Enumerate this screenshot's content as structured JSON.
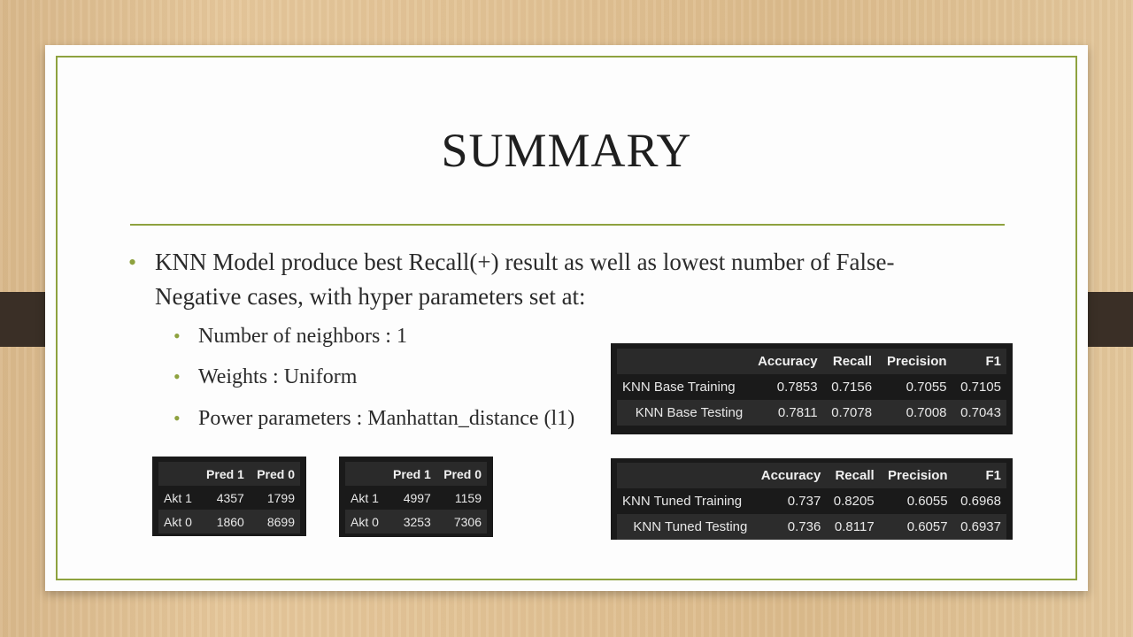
{
  "title": "SUMMARY",
  "main_bullet": "KNN Model produce best Recall(+) result as well as lowest number of False-Negative cases, with hyper parameters set at:",
  "sub_bullets": [
    "Number of neighbors : 1",
    "Weights : Uniform",
    "Power parameters : Manhattan_distance (l1)"
  ],
  "base_table": {
    "headers": [
      "",
      "Accuracy",
      "Recall",
      "Precision",
      "F1"
    ],
    "rows": [
      [
        "KNN Base Training",
        "0.7853",
        "0.7156",
        "0.7055",
        "0.7105"
      ],
      [
        "KNN Base Testing",
        "0.7811",
        "0.7078",
        "0.7008",
        "0.7043"
      ]
    ]
  },
  "tuned_table": {
    "headers": [
      "",
      "Accuracy",
      "Recall",
      "Precision",
      "F1"
    ],
    "rows": [
      [
        "KNN Tuned Training",
        "0.737",
        "0.8205",
        "0.6055",
        "0.6968"
      ],
      [
        "KNN Tuned Testing",
        "0.736",
        "0.8117",
        "0.6057",
        "0.6937"
      ]
    ]
  },
  "confusion_1": {
    "headers": [
      "",
      "Pred 1",
      "Pred 0"
    ],
    "rows": [
      [
        "Akt 1",
        "4357",
        "1799"
      ],
      [
        "Akt 0",
        "1860",
        "8699"
      ]
    ]
  },
  "confusion_2": {
    "headers": [
      "",
      "Pred 1",
      "Pred 0"
    ],
    "rows": [
      [
        "Akt 1",
        "4997",
        "1159"
      ],
      [
        "Akt 0",
        "3253",
        "7306"
      ]
    ]
  },
  "colors": {
    "accent": "#8ea23f",
    "table_bg": "#1a1a1a",
    "strap": "#3a2f26"
  }
}
